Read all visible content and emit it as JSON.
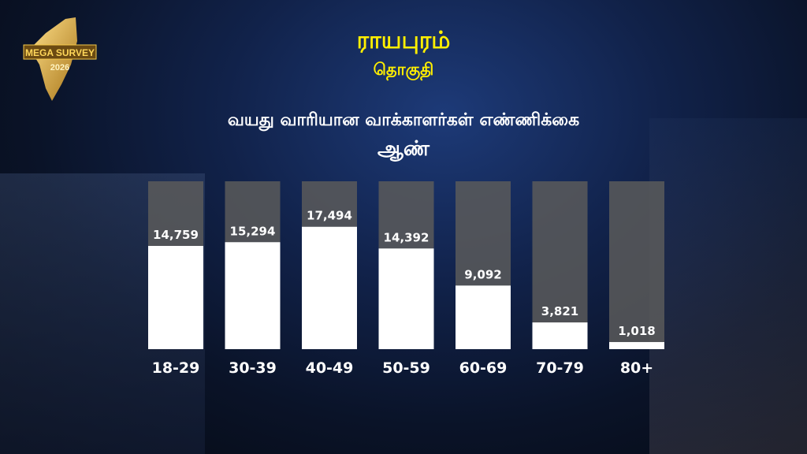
{
  "logo": {
    "text_line1": "MEGA SURVEY",
    "text_line2": "2026"
  },
  "header": {
    "constituency": "ராயபுரம்",
    "constituency_label": "தொகுதி",
    "subtitle": "வயது வாரியான வாக்காளர்கள் எண்ணிக்கை",
    "gender": "ஆண்"
  },
  "colors": {
    "title": "#ffef00",
    "bar": "#ffffff",
    "track": "#5a5a5a"
  },
  "chart_data": {
    "type": "bar",
    "title": "வயது வாரியான வாக்காளர்கள் எண்ணிக்கை",
    "categories": [
      "18-29",
      "30-39",
      "40-49",
      "50-59",
      "60-69",
      "70-79",
      "80+"
    ],
    "values": [
      14759,
      15294,
      17494,
      14392,
      9092,
      3821,
      1018
    ],
    "data_labels": [
      "14,759",
      "15,294",
      "17,494",
      "14,392",
      "9,092",
      "3,821",
      "1,018"
    ],
    "xlabel": "",
    "ylabel": "",
    "ylim": [
      0,
      24000
    ],
    "grid": false,
    "legend": "none"
  }
}
